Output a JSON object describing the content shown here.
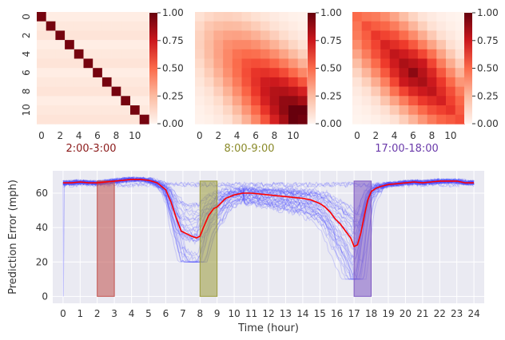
{
  "chart_data": [
    {
      "type": "heatmap",
      "caption": "2:00-3:00",
      "caption_color": "#8b1a1a",
      "x_ticks": [
        "0",
        "2",
        "4",
        "6",
        "8",
        "10"
      ],
      "y_ticks": [
        "0",
        "2",
        "4",
        "6",
        "8",
        "10"
      ],
      "size": 12,
      "pattern": "identity",
      "offdiag_values": [
        0.05,
        0.08,
        0.1
      ],
      "colorbar_ticks": [
        "0.00",
        "0.25",
        "0.50",
        "0.75",
        "1.00"
      ],
      "vmin": 0,
      "vmax": 1,
      "cmap": "Reds"
    },
    {
      "type": "heatmap",
      "caption": "8:00-9:00",
      "caption_color": "#8a8a2a",
      "x_ticks": [
        "0",
        "2",
        "4",
        "6",
        "8",
        "10"
      ],
      "size": 12,
      "pattern": "correlation-morning",
      "colorbar_ticks": [
        "0.00",
        "0.25",
        "0.50",
        "0.75",
        "1.00"
      ],
      "vmin": 0,
      "vmax": 1,
      "cmap": "Reds"
    },
    {
      "type": "heatmap",
      "caption": "17:00-18:00",
      "caption_color": "#6a3aaa",
      "x_ticks": [
        "0",
        "2",
        "4",
        "6",
        "8",
        "10"
      ],
      "size": 12,
      "pattern": "correlation-evening",
      "colorbar_ticks": [
        "0.00",
        "0.25",
        "0.50",
        "0.75",
        "1.00"
      ],
      "vmin": 0,
      "vmax": 1,
      "cmap": "Reds"
    },
    {
      "type": "line",
      "xlabel": "Time (hour)",
      "ylabel": "Prediction Error (mph)",
      "x_ticks": [
        "0",
        "1",
        "2",
        "3",
        "4",
        "5",
        "6",
        "7",
        "8",
        "9",
        "10",
        "11",
        "12",
        "13",
        "14",
        "15",
        "16",
        "17",
        "18",
        "19",
        "20",
        "21",
        "22",
        "23",
        "24"
      ],
      "y_ticks": [
        "0",
        "20",
        "40",
        "60"
      ],
      "xlim": [
        -0.6,
        24.6
      ],
      "ylim": [
        -4,
        73
      ],
      "grid": true,
      "mean_series": {
        "color": "#ff0000",
        "x": [
          0,
          0.5,
          1,
          1.5,
          2,
          2.5,
          3,
          3.5,
          4,
          4.5,
          5,
          5.5,
          6,
          6.3,
          6.6,
          6.9,
          7.2,
          7.5,
          7.8,
          8,
          8.2,
          8.5,
          8.8,
          9,
          9.5,
          10,
          10.5,
          11,
          11.5,
          12,
          12.5,
          13,
          13.5,
          14,
          14.5,
          15,
          15.3,
          15.6,
          15.9,
          16.2,
          16.5,
          16.8,
          17,
          17.2,
          17.4,
          17.6,
          17.8,
          18,
          18.3,
          18.6,
          19,
          19.5,
          20,
          20.5,
          21,
          21.5,
          22,
          22.5,
          23,
          23.5,
          24
        ],
        "values": [
          66,
          66,
          66.5,
          66,
          66,
          66.5,
          67,
          67.5,
          68,
          68,
          67.5,
          66,
          62,
          55,
          46,
          38,
          36.5,
          35,
          34,
          35,
          40,
          47,
          51,
          52,
          57,
          59,
          60,
          60,
          59.5,
          59,
          58.5,
          58,
          57.5,
          57,
          56,
          54,
          52,
          49,
          45,
          42,
          38,
          34,
          29,
          30,
          37,
          47,
          56,
          61,
          63,
          64,
          65,
          65.5,
          66,
          66.5,
          66,
          66.5,
          67,
          67,
          67,
          66,
          66
        ]
      },
      "trace_color": "#4a4aff",
      "trace_count": 40,
      "trace_min_at_7_9": 20,
      "trace_min_at_16_18": 10,
      "bands": [
        {
          "x0": 2,
          "x1": 3,
          "y1": 67,
          "color": "#c0504d"
        },
        {
          "x0": 8,
          "x1": 9,
          "y1": 67,
          "color": "#9a9a3a"
        },
        {
          "x0": 17,
          "x1": 18,
          "y1": 67,
          "color": "#7e57c2"
        }
      ]
    }
  ]
}
